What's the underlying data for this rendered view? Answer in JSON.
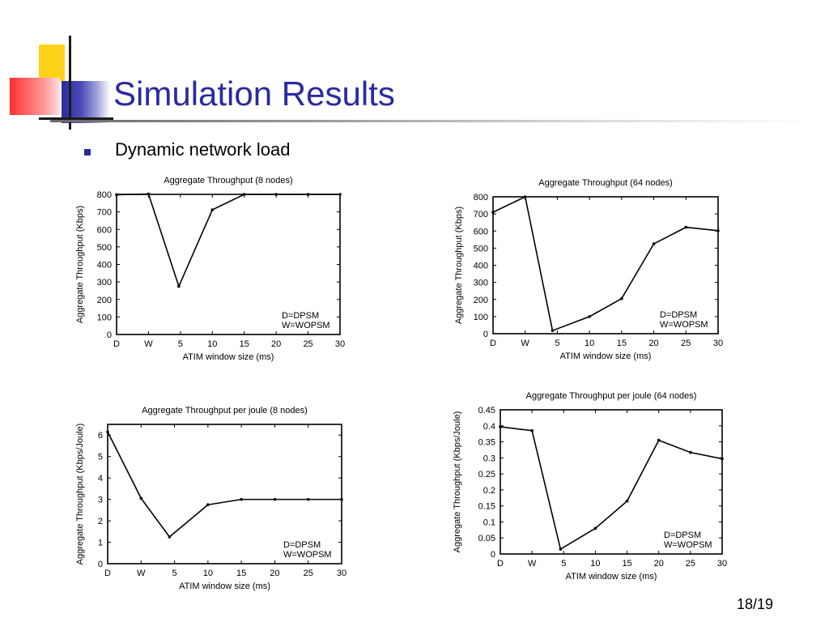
{
  "slide": {
    "title": "Simulation Results",
    "bullet": "Dynamic network load",
    "page": "18/19"
  },
  "colors": {
    "title": "#2a2aa0",
    "deco_yellow": "#ffd21a",
    "deco_blue": "#2a2aa0",
    "deco_red": "#ff4a4a"
  },
  "chart_data": [
    {
      "type": "line",
      "title": "Aggregate Throughput (8 nodes)",
      "xlabel": "ATIM window size (ms)",
      "ylabel": "Aggregate Throughput (Kbps)",
      "x": [
        "D",
        "W",
        "5",
        "10",
        "15",
        "20",
        "25",
        "30"
      ],
      "xticks": [
        0,
        1,
        2,
        3,
        4,
        5,
        6,
        7
      ],
      "xpos": [
        0,
        1,
        1.95,
        3,
        4,
        5,
        6,
        7
      ],
      "values": [
        798,
        802,
        275,
        712,
        800,
        800,
        800,
        800
      ],
      "ylim": [
        0,
        800
      ],
      "yticks": [
        0,
        100,
        200,
        300,
        400,
        500,
        600,
        700,
        800
      ],
      "yticklabels": [
        "0",
        "100",
        "200",
        "300",
        "400",
        "500",
        "600",
        "700",
        "800"
      ],
      "legend_text": [
        "D=DPSM",
        "W=WOPSM"
      ]
    },
    {
      "type": "line",
      "title": "Aggregate Throughput (64 nodes)",
      "xlabel": "ATIM window size (ms)",
      "ylabel": "Aggregate Throughput (Kbps)",
      "x": [
        "D",
        "W",
        "5",
        "10",
        "15",
        "20",
        "25",
        "30"
      ],
      "xticks": [
        0,
        1,
        2,
        3,
        4,
        5,
        6,
        7
      ],
      "xpos": [
        0,
        1,
        1.85,
        3,
        4,
        5,
        6,
        7
      ],
      "values": [
        710,
        800,
        18,
        100,
        205,
        525,
        622,
        602
      ],
      "ylim": [
        0,
        800
      ],
      "yticks": [
        0,
        100,
        200,
        300,
        400,
        500,
        600,
        700,
        800
      ],
      "yticklabels": [
        "0",
        "100",
        "200",
        "300",
        "400",
        "500",
        "600",
        "700",
        "800"
      ],
      "legend_text": [
        "D=DPSM",
        "W=WOPSM"
      ]
    },
    {
      "type": "line",
      "title": "Aggregate Throughput per joule (8 nodes)",
      "xlabel": "ATIM window size (ms)",
      "ylabel": "Aggregate Throughput (Kbps/Joule)",
      "x": [
        "D",
        "W",
        "5",
        "10",
        "15",
        "20",
        "25",
        "30"
      ],
      "xticks": [
        0,
        1,
        2,
        3,
        4,
        5,
        6,
        7
      ],
      "xpos": [
        0,
        1,
        1.85,
        3,
        4,
        5,
        6,
        7
      ],
      "values": [
        6.15,
        3.05,
        1.25,
        2.75,
        3.0,
        3.0,
        3.0,
        3.0
      ],
      "ylim": [
        0,
        6.5
      ],
      "yticks": [
        0,
        1,
        2,
        3,
        4,
        5,
        6
      ],
      "yticklabels": [
        "0",
        "1",
        "2",
        "3",
        "4",
        "5",
        "6"
      ],
      "legend_text": [
        "D=DPSM",
        "W=WOPSM"
      ]
    },
    {
      "type": "line",
      "title": "Aggregate Throughput per joule (64 nodes)",
      "xlabel": "ATIM window size (ms)",
      "ylabel": "Aggregate Throughput (Kbps/Joule)",
      "x": [
        "D",
        "W",
        "5",
        "10",
        "15",
        "20",
        "25",
        "30"
      ],
      "xticks": [
        0,
        1,
        2,
        3,
        4,
        5,
        6,
        7
      ],
      "xpos": [
        0,
        1,
        1.9,
        3,
        4,
        5,
        6,
        7
      ],
      "values": [
        0.397,
        0.385,
        0.015,
        0.08,
        0.165,
        0.355,
        0.317,
        0.297
      ],
      "ylim": [
        0,
        0.45
      ],
      "yticks": [
        0,
        0.05,
        0.1,
        0.15,
        0.2,
        0.25,
        0.3,
        0.35,
        0.4,
        0.45
      ],
      "yticklabels": [
        "0",
        "0.05",
        "0.1",
        "0.15",
        "0.2",
        "0.25",
        "0.3",
        "0.35",
        "0.4",
        "0.45"
      ],
      "legend_text": [
        "D=DPSM",
        "W=WOPSM"
      ]
    }
  ]
}
